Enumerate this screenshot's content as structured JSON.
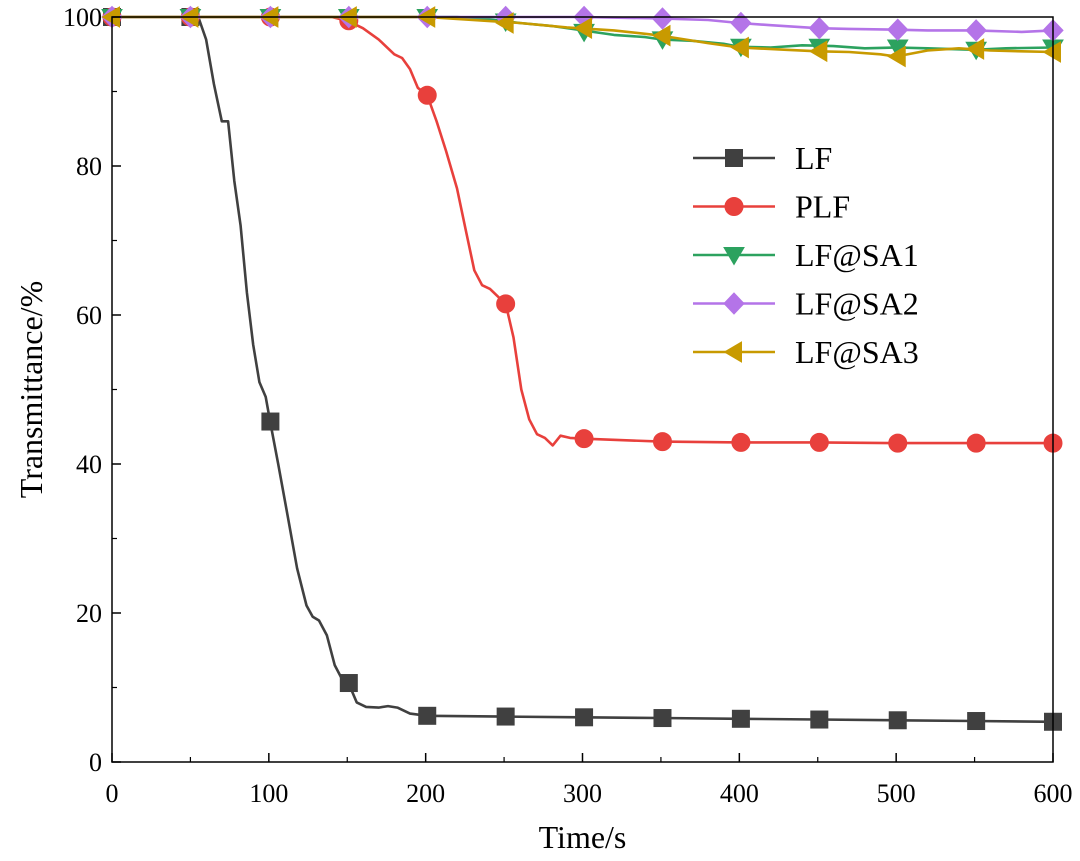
{
  "chart_data": {
    "type": "line",
    "title": "",
    "xlabel": "Time/s",
    "ylabel": "Transmittance/%",
    "xlim": [
      0,
      600
    ],
    "ylim": [
      0,
      100
    ],
    "x_ticks": [
      0,
      100,
      200,
      300,
      400,
      500,
      600
    ],
    "y_ticks": [
      0,
      20,
      40,
      60,
      80,
      100
    ],
    "x_tick_labels": [
      "0",
      "100",
      "200",
      "300",
      "400",
      "500",
      "600"
    ],
    "y_tick_labels": [
      "0",
      "20",
      "40",
      "60",
      "80",
      "100"
    ],
    "legend_position": "center-right",
    "grid": false,
    "series": [
      {
        "name": "LF",
        "color": "#404040",
        "marker": "square",
        "curve": [
          [
            0,
            100
          ],
          [
            55,
            100
          ],
          [
            60,
            97
          ],
          [
            65,
            91
          ],
          [
            70,
            86
          ],
          [
            74,
            86
          ],
          [
            78,
            78
          ],
          [
            82,
            72
          ],
          [
            86,
            63
          ],
          [
            90,
            56
          ],
          [
            94,
            51
          ],
          [
            98,
            49
          ],
          [
            101,
            45.5
          ],
          [
            106,
            40
          ],
          [
            112,
            33
          ],
          [
            118,
            26
          ],
          [
            124,
            21
          ],
          [
            128,
            19.5
          ],
          [
            132,
            19
          ],
          [
            137,
            17
          ],
          [
            142,
            13
          ],
          [
            147,
            11
          ],
          [
            151,
            10.5
          ],
          [
            156,
            8
          ],
          [
            162,
            7.4
          ],
          [
            170,
            7.3
          ],
          [
            176,
            7.5
          ],
          [
            182,
            7.3
          ],
          [
            190,
            6.5
          ],
          [
            201,
            6.2
          ],
          [
            250,
            6.1
          ],
          [
            300,
            6.0
          ],
          [
            350,
            5.9
          ],
          [
            400,
            5.8
          ],
          [
            450,
            5.7
          ],
          [
            500,
            5.6
          ],
          [
            550,
            5.5
          ],
          [
            600,
            5.4
          ]
        ],
        "markers": [
          [
            0,
            100
          ],
          [
            50,
            100
          ],
          [
            101,
            45.7
          ],
          [
            151,
            10.6
          ],
          [
            201,
            6.2
          ],
          [
            251,
            6.1
          ],
          [
            301,
            6.0
          ],
          [
            351,
            5.9
          ],
          [
            401,
            5.8
          ],
          [
            451,
            5.7
          ],
          [
            501,
            5.6
          ],
          [
            551,
            5.5
          ],
          [
            601,
            5.4
          ]
        ]
      },
      {
        "name": "PLF",
        "color": "#e8403c",
        "marker": "circle",
        "curve": [
          [
            0,
            100
          ],
          [
            140,
            100
          ],
          [
            150,
            99.5
          ],
          [
            160,
            98.5
          ],
          [
            170,
            97
          ],
          [
            180,
            95
          ],
          [
            185,
            94.5
          ],
          [
            190,
            93
          ],
          [
            195,
            90.5
          ],
          [
            201,
            89.5
          ],
          [
            207,
            86
          ],
          [
            213,
            82
          ],
          [
            220,
            77
          ],
          [
            226,
            71
          ],
          [
            231,
            66
          ],
          [
            236,
            64
          ],
          [
            241,
            63.5
          ],
          [
            246,
            62.5
          ],
          [
            251,
            61.5
          ],
          [
            256,
            57
          ],
          [
            261,
            50
          ],
          [
            266,
            46
          ],
          [
            271,
            44
          ],
          [
            276,
            43.5
          ],
          [
            281,
            42.5
          ],
          [
            286,
            43.8
          ],
          [
            292,
            43.5
          ],
          [
            301,
            43.4
          ],
          [
            350,
            43.0
          ],
          [
            400,
            42.9
          ],
          [
            450,
            42.9
          ],
          [
            500,
            42.8
          ],
          [
            550,
            42.8
          ],
          [
            600,
            42.8
          ]
        ],
        "markers": [
          [
            0,
            100
          ],
          [
            50,
            100
          ],
          [
            101,
            100
          ],
          [
            151,
            99.5
          ],
          [
            201,
            89.5
          ],
          [
            251,
            61.5
          ],
          [
            301,
            43.4
          ],
          [
            351,
            43.0
          ],
          [
            401,
            42.9
          ],
          [
            451,
            42.9
          ],
          [
            501,
            42.8
          ],
          [
            551,
            42.8
          ],
          [
            601,
            42.8
          ]
        ]
      },
      {
        "name": "LF@SA1",
        "color": "#2ca25f",
        "marker": "triangle-down",
        "curve": [
          [
            0,
            100
          ],
          [
            200,
            100
          ],
          [
            220,
            100
          ],
          [
            240,
            99.7
          ],
          [
            260,
            99.2
          ],
          [
            280,
            98.8
          ],
          [
            300,
            98.2
          ],
          [
            320,
            97.6
          ],
          [
            340,
            97.3
          ],
          [
            350,
            97.0
          ],
          [
            370,
            96.8
          ],
          [
            390,
            96.4
          ],
          [
            400,
            96.0
          ],
          [
            420,
            95.9
          ],
          [
            440,
            96.2
          ],
          [
            460,
            96.1
          ],
          [
            480,
            95.8
          ],
          [
            500,
            95.9
          ],
          [
            520,
            95.8
          ],
          [
            550,
            95.6
          ],
          [
            570,
            95.8
          ],
          [
            600,
            95.9
          ]
        ],
        "markers": [
          [
            0,
            100
          ],
          [
            50,
            100
          ],
          [
            101,
            100
          ],
          [
            151,
            100
          ],
          [
            201,
            100
          ],
          [
            251,
            99.4
          ],
          [
            301,
            98.0
          ],
          [
            351,
            97.0
          ],
          [
            401,
            96.0
          ],
          [
            451,
            96.0
          ],
          [
            501,
            95.9
          ],
          [
            551,
            95.6
          ],
          [
            601,
            95.9
          ]
        ]
      },
      {
        "name": "LF@SA2",
        "color": "#b474e8",
        "marker": "diamond",
        "curve": [
          [
            0,
            100
          ],
          [
            250,
            100
          ],
          [
            300,
            100
          ],
          [
            350,
            99.8
          ],
          [
            380,
            99.6
          ],
          [
            400,
            99.2
          ],
          [
            420,
            98.9
          ],
          [
            450,
            98.5
          ],
          [
            470,
            98.4
          ],
          [
            500,
            98.3
          ],
          [
            520,
            98.2
          ],
          [
            550,
            98.2
          ],
          [
            580,
            98.0
          ],
          [
            600,
            98.2
          ]
        ],
        "markers": [
          [
            0,
            100
          ],
          [
            50,
            100
          ],
          [
            101,
            100
          ],
          [
            151,
            100
          ],
          [
            201,
            100
          ],
          [
            251,
            100
          ],
          [
            301,
            100
          ],
          [
            351,
            99.8
          ],
          [
            401,
            99.2
          ],
          [
            451,
            98.5
          ],
          [
            501,
            98.3
          ],
          [
            551,
            98.2
          ],
          [
            601,
            98.2
          ]
        ]
      },
      {
        "name": "LF@SA3",
        "color": "#c89a00",
        "marker": "triangle-left",
        "curve": [
          [
            0,
            100
          ],
          [
            200,
            100
          ],
          [
            230,
            99.6
          ],
          [
            260,
            99.2
          ],
          [
            290,
            98.6
          ],
          [
            320,
            98.2
          ],
          [
            350,
            97.5
          ],
          [
            380,
            96.5
          ],
          [
            400,
            95.9
          ],
          [
            430,
            95.6
          ],
          [
            450,
            95.4
          ],
          [
            470,
            95.3
          ],
          [
            490,
            95.0
          ],
          [
            500,
            94.7
          ],
          [
            520,
            95.5
          ],
          [
            540,
            95.8
          ],
          [
            560,
            95.5
          ],
          [
            580,
            95.4
          ],
          [
            600,
            95.3
          ]
        ],
        "markers": [
          [
            0,
            100
          ],
          [
            50,
            100
          ],
          [
            101,
            100
          ],
          [
            151,
            100
          ],
          [
            201,
            100
          ],
          [
            251,
            99.2
          ],
          [
            301,
            98.5
          ],
          [
            351,
            97.5
          ],
          [
            401,
            95.9
          ],
          [
            451,
            95.4
          ],
          [
            501,
            94.7
          ],
          [
            551,
            95.7
          ],
          [
            601,
            95.3
          ]
        ]
      }
    ]
  }
}
